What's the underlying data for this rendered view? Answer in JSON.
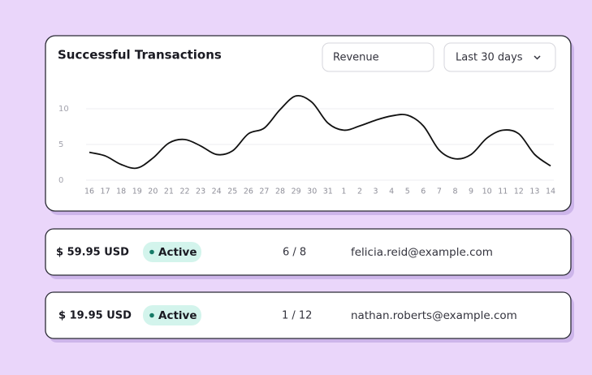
{
  "chart_data": {
    "type": "line",
    "title": "Successful Transactions",
    "categories": [
      "16",
      "17",
      "18",
      "19",
      "20",
      "21",
      "22",
      "23",
      "24",
      "25",
      "26",
      "27",
      "28",
      "29",
      "30",
      "31",
      "1",
      "2",
      "3",
      "4",
      "5",
      "6",
      "7",
      "8",
      "9",
      "10",
      "11",
      "12",
      "13",
      "14"
    ],
    "values": [
      3.9,
      3.4,
      2.2,
      1.7,
      3.1,
      5.2,
      5.7,
      4.8,
      3.6,
      4.1,
      6.5,
      7.3,
      9.9,
      11.8,
      10.9,
      8.0,
      7.0,
      7.6,
      8.4,
      9.0,
      9.1,
      7.6,
      4.2,
      3.0,
      3.6,
      5.9,
      7.0,
      6.5,
      3.6,
      2.0
    ],
    "color": "#111111",
    "ylim": [
      0,
      12.5
    ],
    "yticks": [
      0,
      5,
      10
    ],
    "grid": true
  },
  "controls": {
    "metric": "Revenue",
    "range": "Last 30 days"
  },
  "transactions": [
    {
      "amount": "$ 59.95 USD",
      "status": "Active",
      "count": "6 / 8",
      "email": "felicia.reid@example.com"
    },
    {
      "amount": "$ 19.95 USD",
      "status": "Active",
      "count": "1 / 12",
      "email": "nathan.roberts@example.com"
    }
  ]
}
